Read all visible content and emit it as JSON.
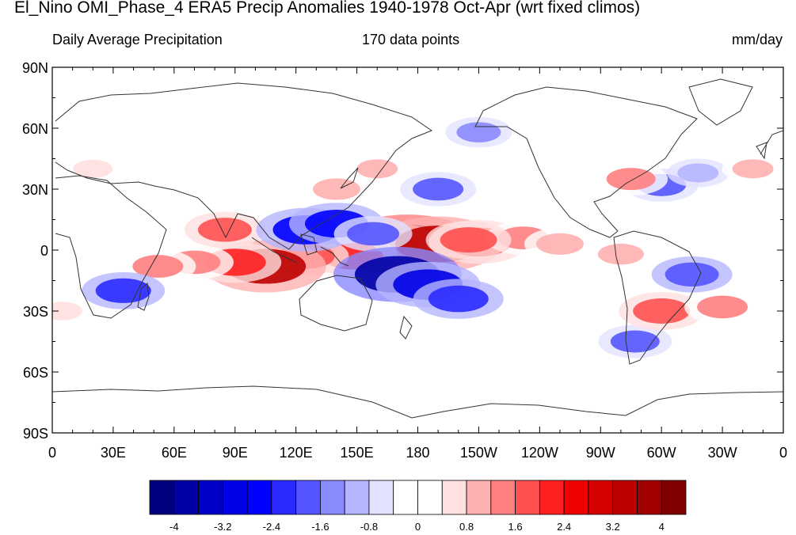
{
  "title": "El_Nino OMI_Phase_4 ERA5 Precip Anomalies 1940-1978 Oct-Apr (wrt fixed climos)",
  "subtitle_left": "Daily Average Precipitation",
  "subtitle_center": "170 data points",
  "subtitle_right": "mm/day",
  "map": {
    "lat_labels": [
      "90N",
      "60N",
      "30N",
      "0",
      "30S",
      "60S",
      "90S"
    ],
    "lon_labels": [
      "0",
      "30E",
      "60E",
      "90E",
      "120E",
      "150E",
      "180",
      "150W",
      "120W",
      "90W",
      "60W",
      "30W",
      "0"
    ]
  },
  "colorbar": {
    "labels": [
      "-4",
      "-3.2",
      "-2.4",
      "-1.6",
      "-0.8",
      "0",
      "0.8",
      "1.6",
      "2.4",
      "3.2",
      "4"
    ],
    "colors": [
      "#00007f",
      "#0000a5",
      "#0000c8",
      "#0000e6",
      "#0000ff",
      "#2a2aff",
      "#5555ff",
      "#8a8aff",
      "#b5b5ff",
      "#e2e2ff",
      "#ffffff",
      "#ffffff",
      "#ffe0e0",
      "#ffb0b0",
      "#ff8080",
      "#ff5050",
      "#ff2020",
      "#f00000",
      "#d60000",
      "#bd0000",
      "#a00000",
      "#800000"
    ]
  },
  "anomalies": [
    {
      "lon": 175,
      "lat": 3,
      "v": 4.2
    },
    {
      "lon": 160,
      "lat": 2,
      "v": 3.5
    },
    {
      "lon": 190,
      "lat": 3,
      "v": 3.8
    },
    {
      "lon": 210,
      "lat": 4,
      "v": 2.6
    },
    {
      "lon": 232,
      "lat": 6,
      "v": 1.6
    },
    {
      "lon": 148,
      "lat": -3,
      "v": 2.2
    },
    {
      "lon": 125,
      "lat": -3,
      "v": 2.0
    },
    {
      "lon": 105,
      "lat": -8,
      "v": 3.5
    },
    {
      "lon": 90,
      "lat": -6,
      "v": 2.3
    },
    {
      "lon": 70,
      "lat": -6,
      "v": 1.7
    },
    {
      "lon": 52,
      "lat": -8,
      "v": 1.6
    },
    {
      "lon": 85,
      "lat": 10,
      "v": 1.8
    },
    {
      "lon": 140,
      "lat": 30,
      "v": 1.4
    },
    {
      "lon": 160,
      "lat": 40,
      "v": 1.0
    },
    {
      "lon": 205,
      "lat": 5,
      "v": 2.0
    },
    {
      "lon": 125,
      "lat": 10,
      "v": -2.6
    },
    {
      "lon": 140,
      "lat": 13,
      "v": -2.4
    },
    {
      "lon": 158,
      "lat": 8,
      "v": -1.7
    },
    {
      "lon": 170,
      "lat": -12,
      "v": -3.8
    },
    {
      "lon": 185,
      "lat": -17,
      "v": -2.8
    },
    {
      "lon": 200,
      "lat": -24,
      "v": -2.2
    },
    {
      "lon": 190,
      "lat": 30,
      "v": -1.6
    },
    {
      "lon": 210,
      "lat": 58,
      "v": -1.2
    },
    {
      "lon": 35,
      "lat": -20,
      "v": -1.9
    },
    {
      "lon": 315,
      "lat": -12,
      "v": -1.8
    },
    {
      "lon": 287,
      "lat": -45,
      "v": -1.5
    },
    {
      "lon": 300,
      "lat": 32,
      "v": -1.5
    },
    {
      "lon": 318,
      "lat": 38,
      "v": -1.0
    },
    {
      "lon": 300,
      "lat": -30,
      "v": 2.0
    },
    {
      "lon": 330,
      "lat": -28,
      "v": 1.6
    },
    {
      "lon": 285,
      "lat": 35,
      "v": 1.5
    },
    {
      "lon": 20,
      "lat": 40,
      "v": 0.9
    },
    {
      "lon": 345,
      "lat": 40,
      "v": 1.0
    },
    {
      "lon": 250,
      "lat": 3,
      "v": 1.4
    },
    {
      "lon": 280,
      "lat": -2,
      "v": 1.3
    },
    {
      "lon": 5,
      "lat": -30,
      "v": 0.9
    }
  ]
}
